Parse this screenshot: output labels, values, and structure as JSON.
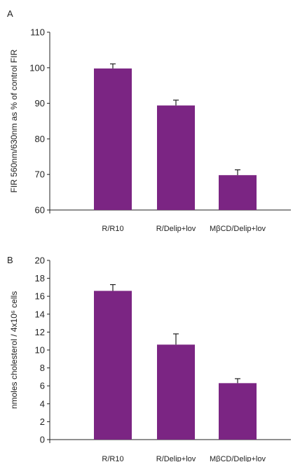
{
  "chart_data": [
    {
      "type": "bar",
      "panel": "A",
      "categories": [
        "R/R10",
        "R/Delip+lov",
        "MβCD/Delip+lov"
      ],
      "values": [
        99.8,
        89.4,
        69.8
      ],
      "errors": [
        1.3,
        1.5,
        1.5
      ],
      "title": "",
      "xlabel": "",
      "ylabel": "FIR 560nm/630nm as % of control FIR",
      "ylim": [
        60,
        110
      ],
      "yticks": [
        60,
        70,
        80,
        90,
        100,
        110
      ],
      "grid": false,
      "bar_color": "#7b2583"
    },
    {
      "type": "bar",
      "panel": "B",
      "categories": [
        "R/R10",
        "R/Delip+lov",
        "MβCD/Delip+lov"
      ],
      "values": [
        16.6,
        10.6,
        6.3
      ],
      "errors": [
        0.7,
        1.2,
        0.5
      ],
      "title": "",
      "xlabel": "",
      "ylabel": "nmoles cholesterol / 4x10⁶ cells",
      "ylim": [
        0,
        20
      ],
      "yticks": [
        0,
        2,
        4,
        6,
        8,
        10,
        12,
        14,
        16,
        18,
        20
      ],
      "grid": false,
      "bar_color": "#7b2583"
    }
  ]
}
